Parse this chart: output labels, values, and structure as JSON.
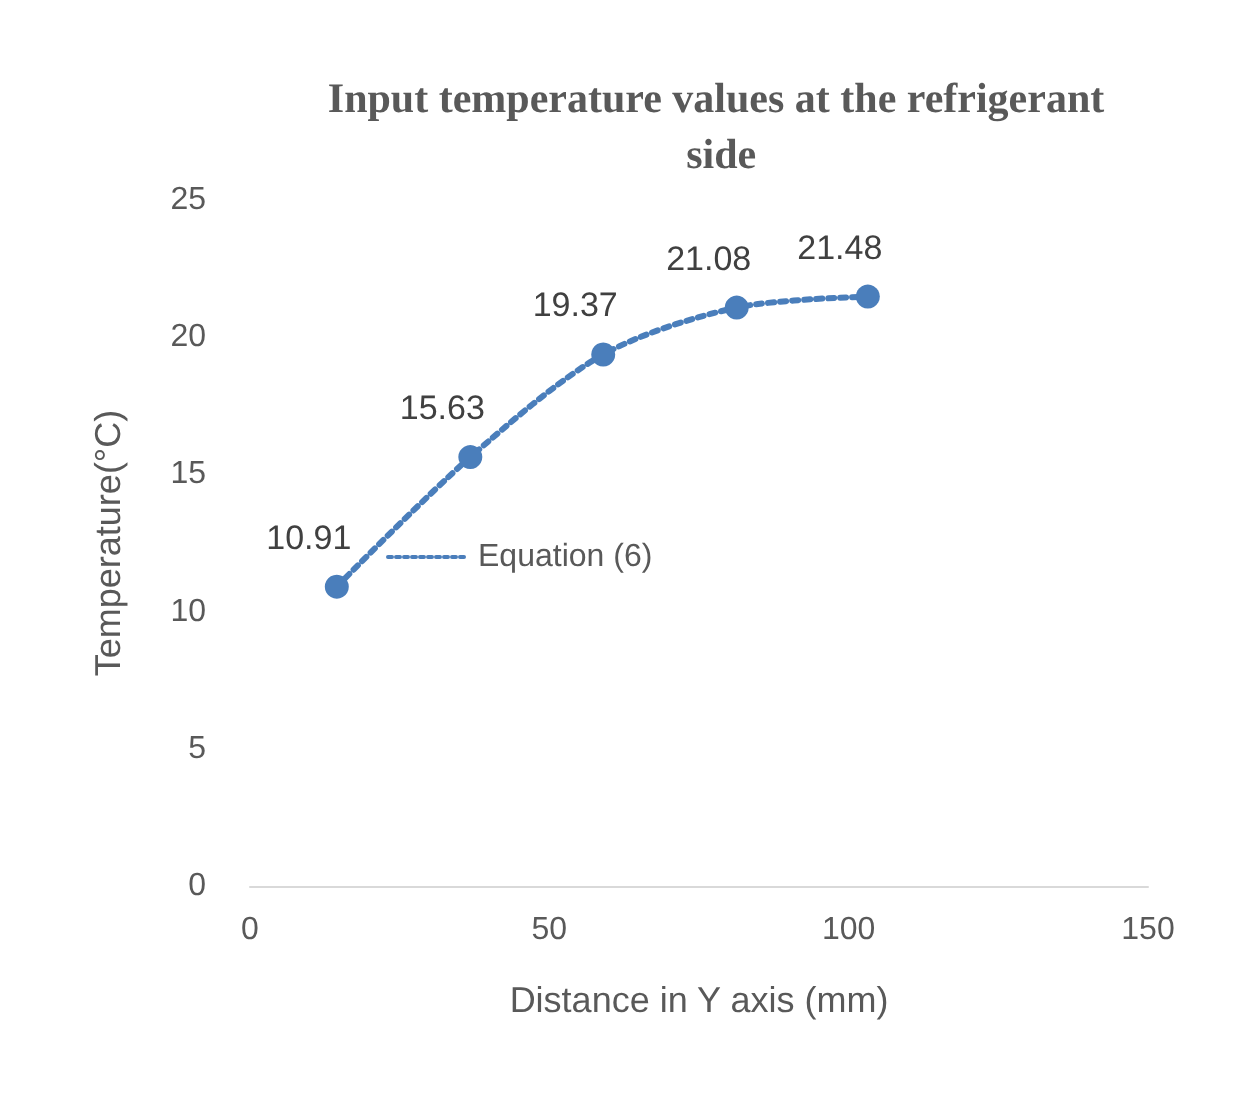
{
  "chart_data": {
    "type": "line",
    "title": "Input temperature values at the refrigerant side",
    "xlabel": "Distance in Y axis (mm)",
    "ylabel": "Temperature(°C)",
    "x": [
      14.5,
      36.8,
      59,
      81.3,
      103.2
    ],
    "series": [
      {
        "name": "Equation (6)",
        "color": "#4a7ebb",
        "values": [
          10.91,
          15.63,
          19.37,
          21.08,
          21.48
        ]
      }
    ],
    "xlim": [
      0,
      150
    ],
    "xticks": [
      0,
      50,
      100,
      150
    ],
    "ylim": [
      0,
      25
    ],
    "yticks": [
      0,
      5,
      10,
      15,
      20,
      25
    ],
    "data_labels": true,
    "legend": "left",
    "marker": "circle",
    "line_style": "dotted",
    "grid": false
  }
}
